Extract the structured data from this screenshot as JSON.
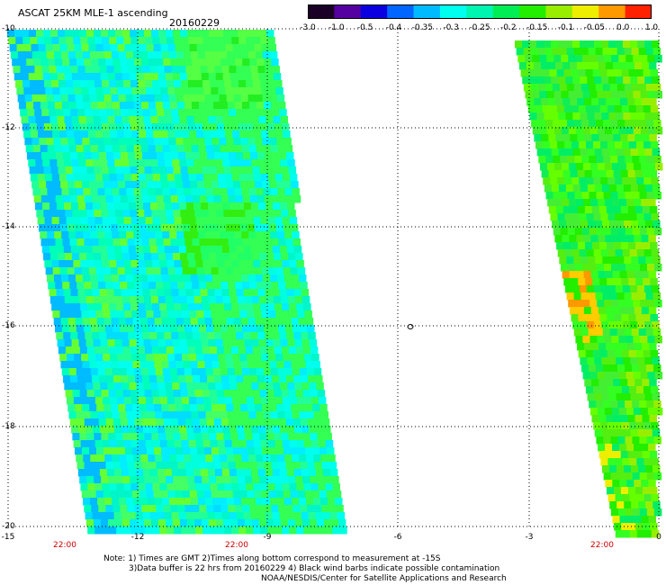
{
  "title": "ASCAT 25KM MLE-1 ascending",
  "date": "20160229",
  "colorbar": {
    "ticks": [
      "-3.0",
      "-1.0",
      "-0.5",
      "-0.4",
      "-0.35",
      "-0.3",
      "-0.25",
      "-0.2",
      "-0.15",
      "-0.1",
      "-0.05",
      "0.0",
      "1.0"
    ],
    "colors": [
      "#1a0026",
      "#5500a0",
      "#0a00e0",
      "#0066ff",
      "#00bbff",
      "#00ffee",
      "#00f5b0",
      "#00ee55",
      "#22ee00",
      "#99ee00",
      "#eeee00",
      "#ff9900",
      "#ff2200"
    ]
  },
  "axes": {
    "lat_labels": [
      "-10",
      "-12",
      "-14",
      "-16",
      "-18",
      "-20"
    ],
    "lon_labels": [
      "-15",
      "-12",
      "-9",
      "-6",
      "-3",
      "0"
    ],
    "time_labels": [
      "22:00",
      "22:00",
      "22:00"
    ]
  },
  "annotation": "o",
  "notes": [
    "Note: 1) Times are GMT 2)Times along bottom correspond to measurement at -15S",
    "3)Data buffer is 22 hrs from 20160229 4) Black wind barbs indicate possible contamination",
    "NOAA/NESDIS/Center for Satellite Applications and Research"
  ]
}
